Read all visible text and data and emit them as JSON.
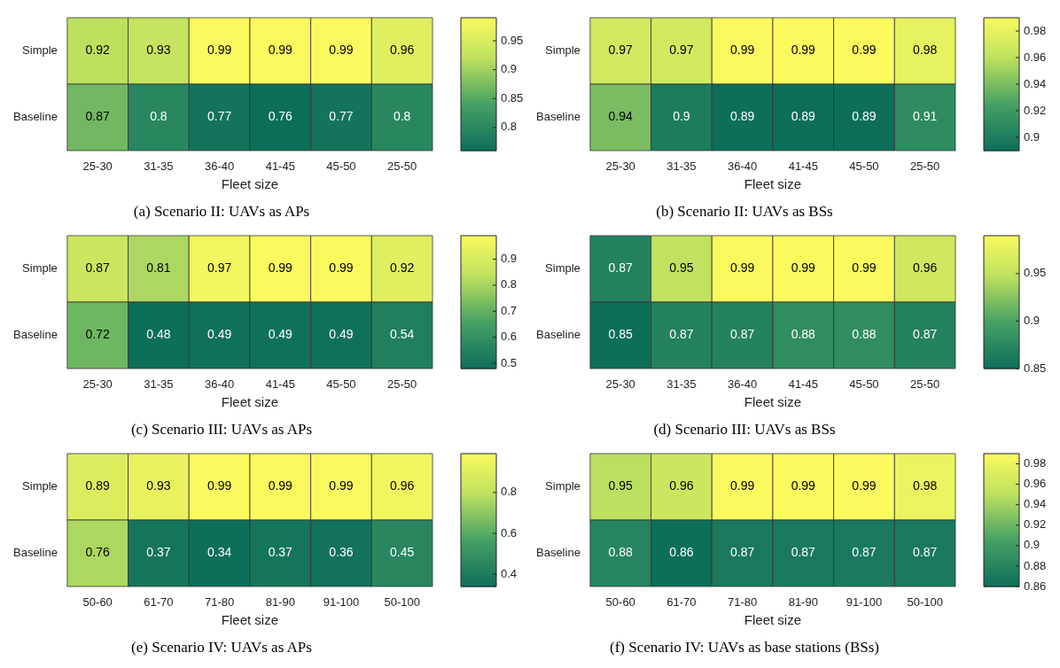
{
  "chart_data": [
    {
      "type": "heatmap",
      "title": "(a) Scenario II: UAVs as APs",
      "xlabel": "Fleet size",
      "categories": [
        "25-30",
        "31-35",
        "36-40",
        "41-45",
        "45-50",
        "25-50"
      ],
      "y_categories": [
        "Simple",
        "Baseline"
      ],
      "cells": [
        [
          0.92,
          0.93,
          0.99,
          0.99,
          0.99,
          0.96
        ],
        [
          0.87,
          0.8,
          0.77,
          0.76,
          0.77,
          0.8
        ]
      ],
      "clim": [
        0.76,
        0.99
      ],
      "cticks": [
        0.8,
        0.85,
        0.9,
        0.95
      ],
      "data_labels": true
    },
    {
      "type": "heatmap",
      "title": "(b) Scenario II: UAVs as BSs",
      "xlabel": "Fleet size",
      "categories": [
        "25-30",
        "31-35",
        "36-40",
        "41-45",
        "45-50",
        "25-50"
      ],
      "y_categories": [
        "Simple",
        "Baseline"
      ],
      "cells": [
        [
          0.97,
          0.97,
          0.99,
          0.99,
          0.99,
          0.98
        ],
        [
          0.94,
          0.9,
          0.89,
          0.89,
          0.89,
          0.91
        ]
      ],
      "clim": [
        0.89,
        0.99
      ],
      "cticks": [
        0.9,
        0.92,
        0.94,
        0.96,
        0.98
      ],
      "data_labels": true
    },
    {
      "type": "heatmap",
      "title": "(c) Scenario III: UAVs as APs",
      "xlabel": "Fleet size",
      "categories": [
        "25-30",
        "31-35",
        "36-40",
        "41-45",
        "45-50",
        "25-50"
      ],
      "y_categories": [
        "Simple",
        "Baseline"
      ],
      "cells": [
        [
          0.87,
          0.81,
          0.97,
          0.99,
          0.99,
          0.92
        ],
        [
          0.72,
          0.48,
          0.49,
          0.49,
          0.49,
          0.54
        ]
      ],
      "clim": [
        0.48,
        0.99
      ],
      "cticks": [
        0.5,
        0.6,
        0.7,
        0.8,
        0.9
      ],
      "data_labels": true
    },
    {
      "type": "heatmap",
      "title": "(d) Scenario III: UAVs as BSs",
      "xlabel": "Fleet size",
      "categories": [
        "25-30",
        "31-35",
        "36-40",
        "41-45",
        "45-50",
        "25-50"
      ],
      "y_categories": [
        "Simple",
        "Baseline"
      ],
      "cells": [
        [
          0.87,
          0.95,
          0.99,
          0.99,
          0.99,
          0.96
        ],
        [
          0.85,
          0.87,
          0.87,
          0.88,
          0.88,
          0.87
        ]
      ],
      "clim": [
        0.85,
        0.99
      ],
      "cticks": [
        0.85,
        0.9,
        0.95
      ],
      "data_labels": true
    },
    {
      "type": "heatmap",
      "title": "(e) Scenario IV: UAVs as APs",
      "xlabel": "Fleet size",
      "categories": [
        "50-60",
        "61-70",
        "71-80",
        "81-90",
        "91-100",
        "50-100"
      ],
      "y_categories": [
        "Simple",
        "Baseline"
      ],
      "cells": [
        [
          0.89,
          0.93,
          0.99,
          0.99,
          0.99,
          0.96
        ],
        [
          0.76,
          0.37,
          0.34,
          0.37,
          0.36,
          0.45
        ]
      ],
      "clim": [
        0.34,
        0.99
      ],
      "cticks": [
        0.4,
        0.6,
        0.8
      ],
      "data_labels": true
    },
    {
      "type": "heatmap",
      "title": "(f) Scenario IV: UAVs as base stations (BSs)",
      "xlabel": "Fleet size",
      "categories": [
        "50-60",
        "61-70",
        "71-80",
        "81-90",
        "91-100",
        "50-100"
      ],
      "y_categories": [
        "Simple",
        "Baseline"
      ],
      "cells": [
        [
          0.95,
          0.96,
          0.99,
          0.99,
          0.99,
          0.98
        ],
        [
          0.88,
          0.86,
          0.87,
          0.87,
          0.87,
          0.87
        ]
      ],
      "clim": [
        0.86,
        0.99
      ],
      "cticks": [
        0.86,
        0.88,
        0.9,
        0.92,
        0.94,
        0.96,
        0.98
      ],
      "data_labels": true
    }
  ]
}
